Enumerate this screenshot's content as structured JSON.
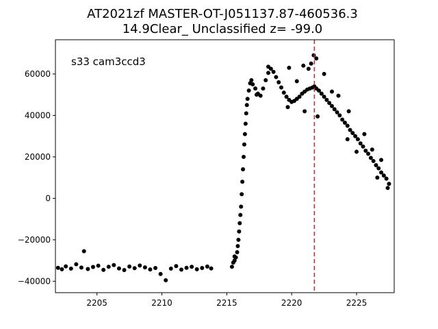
{
  "chart_data": {
    "type": "scatter",
    "title_line1": "AT2021zf  MASTER-OT-J051137.87-460536.3",
    "title_line2": "14.9Clear_ Unclassified z= -99.0",
    "annotation": "s33 cam3ccd3",
    "xlabel": "",
    "ylabel": "",
    "xlim": [
      2201.8,
      2227.9
    ],
    "ylim": [
      -45500,
      76500
    ],
    "xticks": [
      2205,
      2210,
      2215,
      2220,
      2225
    ],
    "yticks": [
      -40000,
      -20000,
      0,
      20000,
      40000,
      60000
    ],
    "marker_color": "#000000",
    "vline": {
      "x": 2221.75,
      "color": "#d62728",
      "style": "dashed"
    },
    "grid": false,
    "series": [
      {
        "points": [
          [
            2202.0,
            -33500
          ],
          [
            2202.3,
            -34200
          ],
          [
            2202.6,
            -32800
          ],
          [
            2203.0,
            -33900
          ],
          [
            2203.4,
            -31800
          ],
          [
            2203.8,
            -33400
          ],
          [
            2204.0,
            -25500
          ],
          [
            2204.3,
            -34100
          ],
          [
            2204.7,
            -33100
          ],
          [
            2205.1,
            -32500
          ],
          [
            2205.5,
            -34500
          ],
          [
            2205.9,
            -33000
          ],
          [
            2206.3,
            -32200
          ],
          [
            2206.7,
            -33800
          ],
          [
            2207.1,
            -34600
          ],
          [
            2207.5,
            -32900
          ],
          [
            2207.9,
            -33700
          ],
          [
            2208.3,
            -32400
          ],
          [
            2208.7,
            -33300
          ],
          [
            2209.1,
            -34300
          ],
          [
            2209.5,
            -33600
          ],
          [
            2209.9,
            -36500
          ],
          [
            2210.3,
            -39500
          ],
          [
            2210.7,
            -33900
          ],
          [
            2211.1,
            -32700
          ],
          [
            2211.5,
            -34400
          ],
          [
            2211.9,
            -33500
          ],
          [
            2212.3,
            -33000
          ],
          [
            2212.7,
            -34200
          ],
          [
            2213.1,
            -33600
          ],
          [
            2213.5,
            -32900
          ],
          [
            2213.8,
            -33800
          ],
          [
            2215.4,
            -33000
          ],
          [
            2215.5,
            -31000
          ],
          [
            2215.6,
            -30000
          ],
          [
            2215.7,
            -28500
          ],
          [
            2215.8,
            -26000
          ],
          [
            2215.85,
            -23000
          ],
          [
            2215.9,
            -20000
          ],
          [
            2215.95,
            -16000
          ],
          [
            2216.0,
            -12000
          ],
          [
            2216.05,
            -8000
          ],
          [
            2216.1,
            -4000
          ],
          [
            2216.15,
            2000
          ],
          [
            2216.2,
            8000
          ],
          [
            2216.25,
            14000
          ],
          [
            2216.3,
            20000
          ],
          [
            2216.35,
            26000
          ],
          [
            2216.4,
            31000
          ],
          [
            2216.45,
            36000
          ],
          [
            2216.5,
            41000
          ],
          [
            2216.55,
            45000
          ],
          [
            2216.6,
            48000
          ],
          [
            2216.7,
            52000
          ],
          [
            2216.8,
            55500
          ],
          [
            2216.9,
            57000
          ],
          [
            2217.0,
            55000
          ],
          [
            2217.2,
            53000
          ],
          [
            2217.4,
            50500
          ],
          [
            2217.6,
            49500
          ],
          [
            2217.8,
            53000
          ],
          [
            2218.0,
            57000
          ],
          [
            2218.2,
            60500
          ],
          [
            2218.4,
            62500
          ],
          [
            2218.6,
            61000
          ],
          [
            2218.8,
            58500
          ],
          [
            2219.0,
            56000
          ],
          [
            2219.2,
            53500
          ],
          [
            2219.4,
            51000
          ],
          [
            2219.6,
            49000
          ],
          [
            2219.8,
            47500
          ],
          [
            2220.0,
            46500
          ],
          [
            2220.2,
            47000
          ],
          [
            2220.4,
            48000
          ],
          [
            2220.6,
            49000
          ],
          [
            2220.8,
            50500
          ],
          [
            2221.0,
            51500
          ],
          [
            2221.2,
            52500
          ],
          [
            2221.4,
            53000
          ],
          [
            2221.6,
            53500
          ],
          [
            2221.75,
            54000
          ],
          [
            2221.9,
            53000
          ],
          [
            2222.1,
            52000
          ],
          [
            2222.3,
            50500
          ],
          [
            2222.5,
            49000
          ],
          [
            2222.7,
            47500
          ],
          [
            2222.9,
            46000
          ],
          [
            2223.1,
            44500
          ],
          [
            2223.3,
            43000
          ],
          [
            2223.5,
            41500
          ],
          [
            2223.7,
            40000
          ],
          [
            2223.9,
            38000
          ],
          [
            2224.1,
            36500
          ],
          [
            2224.3,
            35000
          ],
          [
            2224.5,
            33000
          ],
          [
            2224.7,
            31500
          ],
          [
            2224.9,
            30000
          ],
          [
            2225.1,
            28500
          ],
          [
            2225.3,
            26500
          ],
          [
            2225.5,
            25000
          ],
          [
            2225.7,
            23000
          ],
          [
            2225.9,
            21500
          ],
          [
            2226.1,
            19500
          ],
          [
            2226.3,
            18000
          ],
          [
            2226.5,
            16000
          ],
          [
            2226.7,
            14500
          ],
          [
            2226.9,
            12500
          ],
          [
            2227.1,
            11000
          ],
          [
            2227.3,
            9500
          ],
          [
            2227.5,
            7000
          ],
          [
            2221.7,
            69000
          ],
          [
            2221.9,
            67500
          ],
          [
            2221.5,
            65000
          ],
          [
            2220.9,
            64000
          ],
          [
            2221.3,
            62500
          ],
          [
            2219.8,
            63000
          ],
          [
            2218.2,
            63500
          ],
          [
            2217.3,
            50000
          ],
          [
            2219.7,
            44000
          ],
          [
            2221.0,
            42000
          ],
          [
            2222.5,
            60000
          ],
          [
            2220.4,
            56500
          ],
          [
            2223.1,
            51500
          ],
          [
            2224.4,
            42000
          ],
          [
            2224.3,
            28500
          ],
          [
            2225.6,
            31000
          ],
          [
            2225.0,
            22500
          ],
          [
            2226.2,
            23500
          ],
          [
            2226.9,
            18500
          ],
          [
            2226.6,
            10000
          ],
          [
            2227.4,
            5000
          ],
          [
            2215.6,
            -28000
          ],
          [
            2223.6,
            49500
          ],
          [
            2222.0,
            39500
          ]
        ]
      }
    ]
  }
}
